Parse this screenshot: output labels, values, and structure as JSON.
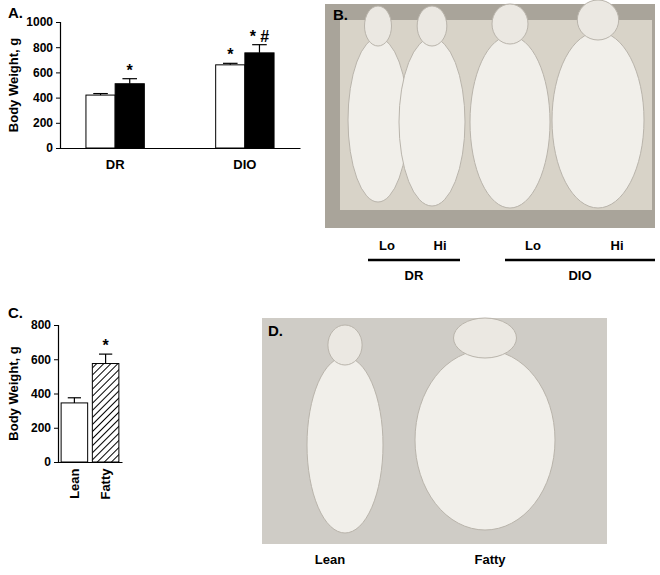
{
  "chart_data": [
    {
      "type": "bar",
      "title": "A.",
      "y_label": "Body Weight, g",
      "categories": [
        "DR",
        "DIO"
      ],
      "series": [
        {
          "color": "#ffffff",
          "values": [
            420,
            660
          ],
          "errors": [
            12,
            12
          ],
          "annotations": [
            null,
            "*"
          ]
        },
        {
          "color": "#000000",
          "values": [
            510,
            755
          ],
          "errors": [
            40,
            65
          ],
          "annotations": [
            "*",
            "* #"
          ]
        }
      ],
      "ylim": [
        0,
        1000
      ],
      "yticks": [
        0,
        200,
        400,
        600,
        800,
        1000
      ],
      "grid": false
    },
    {
      "type": "bar",
      "title": "C.",
      "y_label": "Body Weight, g",
      "categories": [
        "Lean",
        "Fatty"
      ],
      "values": [
        345,
        575
      ],
      "errors": [
        30,
        55
      ],
      "annotations": [
        null,
        "*"
      ],
      "colors": [
        "#ffffff",
        "#000000"
      ],
      "ylim": [
        0,
        800
      ],
      "yticks": [
        0,
        200,
        400,
        600,
        800
      ],
      "grid": false
    }
  ],
  "images": [
    {
      "label": "B.",
      "groups": [
        {
          "name": "DR",
          "items": [
            "Lo",
            "Hi"
          ]
        },
        {
          "name": "DIO",
          "items": [
            "Lo",
            "Hi"
          ]
        }
      ]
    },
    {
      "label": "D.",
      "items": [
        "Lean",
        "Fatty"
      ]
    }
  ]
}
